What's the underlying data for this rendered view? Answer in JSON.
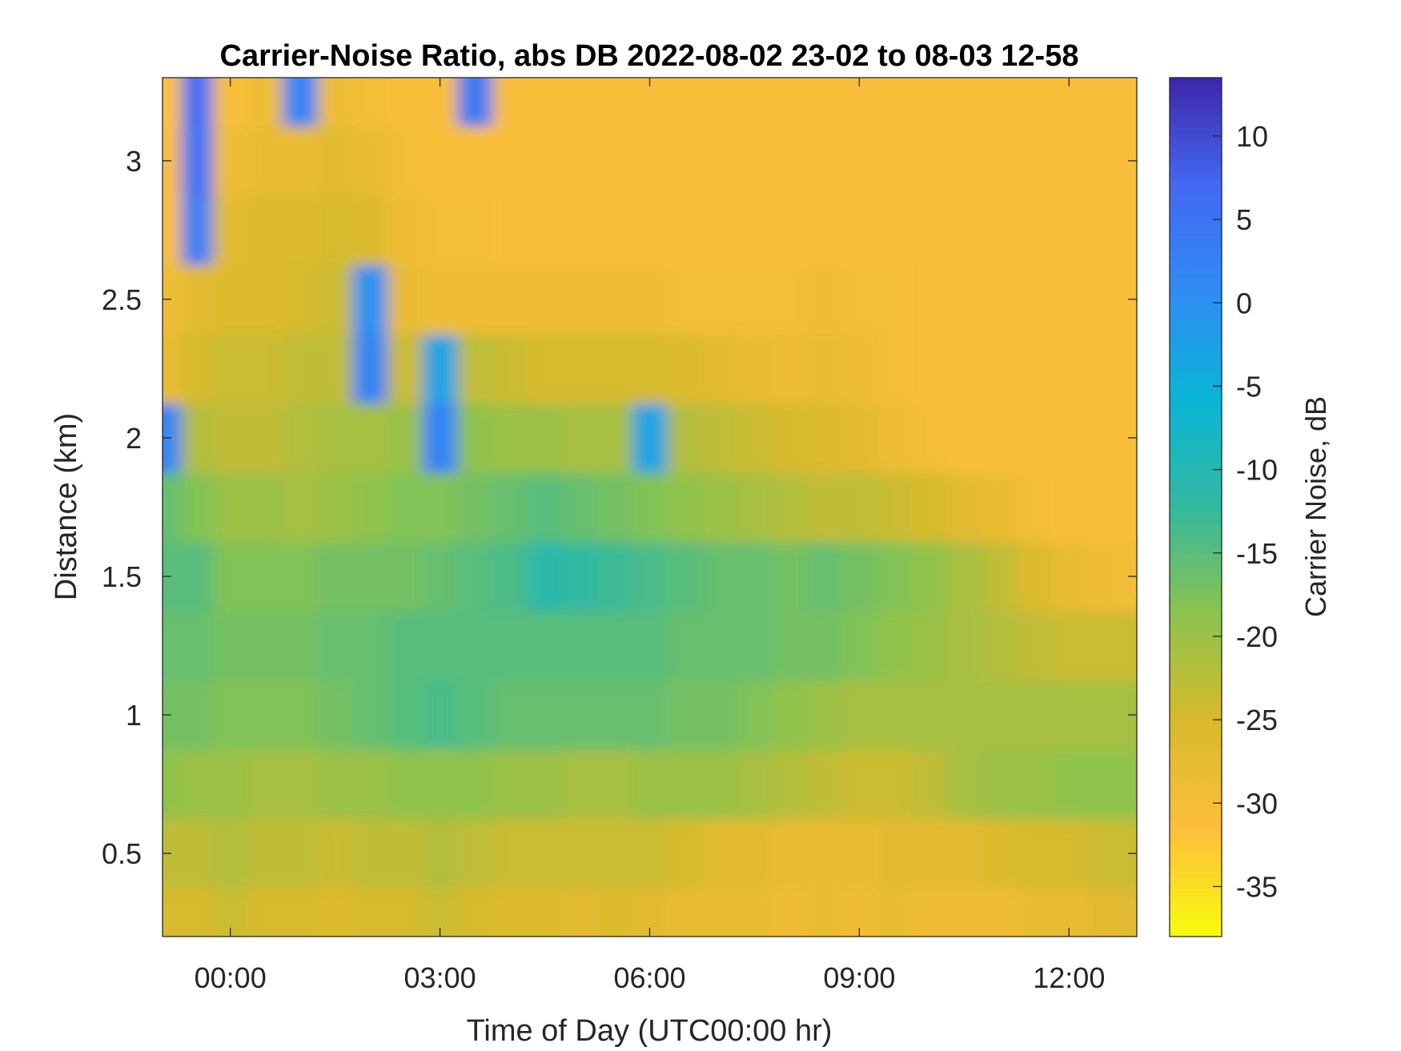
{
  "chart_data": {
    "type": "heatmap",
    "title": "Carrier-Noise Ratio, abs DB 2022-08-02 23-02 to 08-03 12-58",
    "xlabel": "Time of Day (UTC00:00 hr)",
    "ylabel": "Distance (km)",
    "colorbar_label": "Carrier Noise, dB",
    "x_ticks": [
      {
        "label": "00:00",
        "value": 0
      },
      {
        "label": "03:00",
        "value": 3
      },
      {
        "label": "06:00",
        "value": 6
      },
      {
        "label": "09:00",
        "value": 9
      },
      {
        "label": "12:00",
        "value": 12
      }
    ],
    "y_ticks": [
      {
        "label": "0.5",
        "value": 0.5
      },
      {
        "label": "1",
        "value": 1
      },
      {
        "label": "1.5",
        "value": 1.5
      },
      {
        "label": "2",
        "value": 2
      },
      {
        "label": "2.5",
        "value": 2.5
      },
      {
        "label": "3",
        "value": 3
      }
    ],
    "colorbar_ticks": [
      {
        "label": "10",
        "value": 10
      },
      {
        "label": "5",
        "value": 5
      },
      {
        "label": "0",
        "value": 0
      },
      {
        "label": "-5",
        "value": -5
      },
      {
        "label": "-10",
        "value": -10
      },
      {
        "label": "-15",
        "value": -15
      },
      {
        "label": "-20",
        "value": -20
      },
      {
        "label": "-25",
        "value": -25
      },
      {
        "label": "-30",
        "value": -30
      },
      {
        "label": "-35",
        "value": -35
      }
    ],
    "xlim": [
      -0.97,
      12.97
    ],
    "ylim": [
      0.2,
      3.3
    ],
    "clim": [
      -38,
      13.5
    ],
    "colormap": "parula",
    "colormap_reversed": true,
    "colormap_stops": [
      "#f9fb0e",
      "#fcbf3c",
      "#d8ba2c",
      "#8cc34e",
      "#33b9a0",
      "#0ab4d6",
      "#2f8cf5",
      "#4468f2",
      "#3e26a8"
    ],
    "grid": false,
    "x_values": [
      -0.9,
      -0.5,
      0,
      0.5,
      1,
      1.5,
      2,
      2.5,
      3,
      3.5,
      4,
      4.5,
      5,
      5.5,
      6,
      6.5,
      7,
      7.5,
      8,
      8.5,
      9,
      9.5,
      10,
      10.5,
      11,
      11.5,
      12,
      12.5,
      12.9
    ],
    "y_values": [
      0.25,
      0.5,
      0.75,
      1,
      1.25,
      1.5,
      1.75,
      2,
      2.25,
      2.5,
      2.75,
      3,
      3.25
    ],
    "z_values": [
      [
        -25,
        -25,
        -24,
        -25,
        -25,
        -26,
        -25,
        -25,
        -24,
        -25,
        -26,
        -26,
        -27,
        -26,
        -27,
        -28,
        -28,
        -28,
        -29,
        -28,
        -29,
        -28,
        -29,
        -29,
        -29,
        -28,
        -28,
        -27,
        -27
      ],
      [
        -23,
        -23,
        -22,
        -23,
        -23,
        -24,
        -23,
        -23,
        -22,
        -23,
        -24,
        -24,
        -24,
        -24,
        -24,
        -25,
        -27,
        -27,
        -28,
        -28,
        -28,
        -27,
        -27,
        -27,
        -26,
        -25,
        -25,
        -24,
        -24
      ],
      [
        -19,
        -20,
        -20,
        -21,
        -21,
        -20,
        -20,
        -19,
        -19,
        -19,
        -20,
        -20,
        -21,
        -21,
        -20,
        -20,
        -20,
        -21,
        -22,
        -23,
        -24,
        -24,
        -23,
        -21,
        -20,
        -20,
        -19,
        -19,
        -19
      ],
      [
        -17,
        -17,
        -18,
        -18,
        -18,
        -17,
        -16,
        -15,
        -14,
        -15,
        -16,
        -16,
        -16,
        -16,
        -16,
        -17,
        -17,
        -18,
        -19,
        -20,
        -21,
        -21,
        -21,
        -21,
        -21,
        -21,
        -21,
        -21,
        -21
      ],
      [
        -16,
        -16,
        -17,
        -17,
        -17,
        -16,
        -16,
        -15,
        -15,
        -15,
        -15,
        -15,
        -15,
        -15,
        -15,
        -16,
        -16,
        -16,
        -17,
        -17,
        -18,
        -19,
        -20,
        -21,
        -22,
        -23,
        -24,
        -24,
        -24
      ],
      [
        -15,
        -15,
        -18,
        -18,
        -18,
        -17,
        -17,
        -17,
        -16,
        -15,
        -14,
        -11,
        -12,
        -13,
        -14,
        -15,
        -16,
        -16,
        -17,
        -16,
        -17,
        -18,
        -19,
        -21,
        -23,
        -26,
        -28,
        -29,
        -30
      ],
      [
        -16,
        -18,
        -20,
        -20,
        -21,
        -20,
        -19,
        -18,
        -18,
        -17,
        -16,
        -15,
        -16,
        -17,
        -18,
        -19,
        -20,
        -21,
        -22,
        -23,
        -23,
        -24,
        -25,
        -27,
        -28,
        -30,
        -31,
        -31,
        -31
      ],
      [
        2,
        -22,
        -23,
        -23,
        -22,
        -21,
        -21,
        -20,
        2,
        -19,
        -20,
        -20,
        -21,
        -21,
        -3,
        -22,
        -23,
        -24,
        -25,
        -26,
        -27,
        -29,
        -30,
        -31,
        -31,
        -31,
        -31,
        -31,
        -31
      ],
      [
        -28,
        -25,
        -24,
        -24,
        -23,
        -23,
        2,
        -24,
        -3,
        -23,
        -24,
        -25,
        -25,
        -25,
        -25,
        -26,
        -27,
        -28,
        -29,
        -28,
        -29,
        -30,
        -31,
        -31,
        -31,
        -31,
        -31,
        -31,
        -31
      ],
      [
        -29,
        -27,
        -26,
        -26,
        -25,
        -24,
        0,
        -28,
        -29,
        -29,
        -29,
        -29,
        -29,
        -29,
        -29,
        -30,
        -30,
        -30,
        -30,
        -29,
        -30,
        -30,
        -31,
        -31,
        -31,
        -31,
        -31,
        -31,
        -31
      ],
      [
        -31,
        3,
        -27,
        -26,
        -26,
        -25,
        -26,
        -29,
        -30,
        -30,
        -31,
        -31,
        -31,
        -31,
        -31,
        -31,
        -31,
        -31,
        -31,
        -31,
        -31,
        -31,
        -31,
        -31,
        -31,
        -31,
        -31,
        -31,
        -31
      ],
      [
        -31,
        5,
        -29,
        -28,
        -28,
        -27,
        -28,
        -30,
        -31,
        -31,
        -31,
        -31,
        -31,
        -31,
        -31,
        -31,
        -31,
        -31,
        -31,
        -31,
        -31,
        -31,
        -31,
        -31,
        -31,
        -31,
        -31,
        -31,
        -31
      ],
      [
        -32,
        6,
        -31,
        -29,
        2,
        -29,
        -30,
        -31,
        -31,
        4,
        -31,
        -31,
        -31,
        -31,
        -31,
        -31,
        -31,
        -31,
        -31,
        -31,
        -31,
        -31,
        -31,
        -31,
        -31,
        -31,
        -31,
        -31,
        -31
      ]
    ]
  }
}
